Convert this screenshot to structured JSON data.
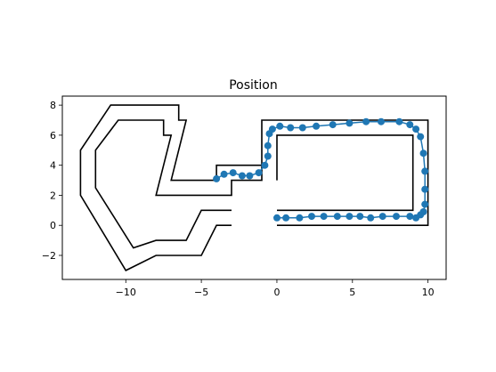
{
  "chart_data": {
    "type": "line",
    "title": "Position",
    "xlabel": "",
    "ylabel": "",
    "xlim": [
      -14.2,
      11.2
    ],
    "ylim": [
      -3.6,
      8.6
    ],
    "xticks": [
      -10,
      -5,
      0,
      5,
      10
    ],
    "yticks": [
      -2,
      0,
      2,
      4,
      6,
      8
    ],
    "grid": false,
    "colors": {
      "track": "#000000",
      "points": "#1f77b4"
    },
    "track_lines": [
      {
        "name": "",
        "points": [
          [
            -3,
            1
          ],
          [
            -5,
            1
          ],
          [
            -6,
            -1
          ],
          [
            -8,
            -1
          ],
          [
            -9.5,
            -1.5
          ],
          [
            -12,
            2.5
          ],
          [
            -12,
            5
          ],
          [
            -10.5,
            7
          ],
          [
            -7.5,
            7
          ],
          [
            -7.5,
            6
          ],
          [
            -7,
            6
          ],
          [
            -8,
            2
          ],
          [
            -3,
            2
          ],
          [
            -3,
            3
          ],
          [
            -1,
            3
          ],
          [
            -1,
            7
          ],
          [
            10,
            7
          ],
          [
            10,
            0
          ],
          [
            0,
            0
          ]
        ]
      },
      {
        "name": "",
        "points": [
          [
            -3,
            0
          ],
          [
            -4,
            0
          ],
          [
            -5,
            -2
          ],
          [
            -8,
            -2
          ],
          [
            -10,
            -3
          ],
          [
            -13,
            2
          ],
          [
            -13,
            5
          ],
          [
            -11,
            8
          ],
          [
            -6.5,
            8
          ],
          [
            -6.5,
            7
          ],
          [
            -6,
            7
          ],
          [
            -7,
            3
          ],
          [
            -4,
            3
          ],
          [
            -4,
            4
          ],
          [
            -1,
            4
          ]
        ]
      },
      {
        "name": "",
        "points": [
          [
            0,
            3
          ],
          [
            0,
            6
          ],
          [
            9,
            6
          ],
          [
            9,
            1
          ],
          [
            0,
            1
          ]
        ]
      }
    ],
    "series": [
      {
        "name": "",
        "x": [
          -4.0,
          -3.5,
          -2.9,
          -2.3,
          -1.8,
          -1.2,
          -0.8,
          -0.6,
          -0.6,
          -0.5,
          -0.3,
          0.2,
          0.9,
          1.7,
          2.6,
          3.7,
          4.8,
          5.9,
          6.9,
          8.1,
          8.8,
          9.2,
          9.5,
          9.7,
          9.8,
          9.8,
          9.8,
          9.7,
          9.5,
          9.2,
          8.8,
          7.9,
          7.0,
          6.2,
          5.5,
          4.8,
          4.0,
          3.1,
          2.3,
          1.5,
          0.6,
          0.0
        ],
        "y": [
          3.1,
          3.4,
          3.5,
          3.3,
          3.3,
          3.5,
          4.0,
          4.6,
          5.3,
          6.1,
          6.4,
          6.6,
          6.5,
          6.5,
          6.6,
          6.7,
          6.8,
          6.9,
          6.9,
          6.9,
          6.7,
          6.4,
          5.9,
          4.8,
          3.6,
          2.4,
          1.4,
          0.9,
          0.7,
          0.5,
          0.6,
          0.6,
          0.6,
          0.5,
          0.6,
          0.6,
          0.6,
          0.6,
          0.6,
          0.5,
          0.5,
          0.5
        ]
      }
    ]
  }
}
